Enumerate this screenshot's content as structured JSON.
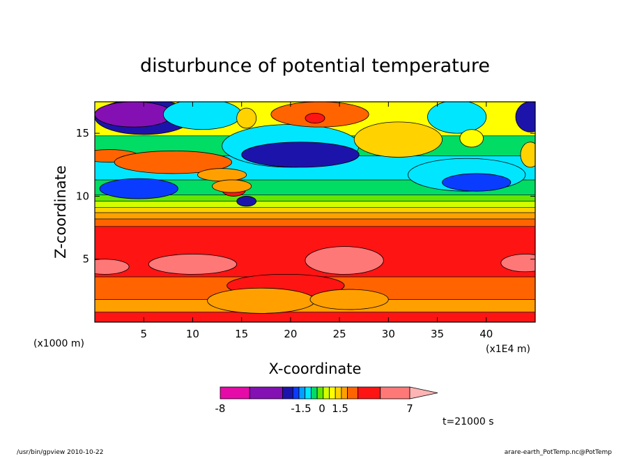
{
  "chart_data": {
    "type": "heatmap",
    "title": "disturbunce of potential temperature",
    "xlabel": "X-coordinate",
    "ylabel": "Z-coordinate",
    "x_unit_left": "(x1000 m)",
    "x_unit_right": "(x1E4 m)",
    "xlim": [
      0,
      45
    ],
    "ylim": [
      0,
      17.5
    ],
    "x_ticks": [
      "5",
      "10",
      "15",
      "20",
      "25",
      "30",
      "35",
      "40"
    ],
    "x_tick_values": [
      5,
      10,
      15,
      20,
      25,
      30,
      35,
      40
    ],
    "y_ticks": [
      "5",
      "10",
      "15"
    ],
    "y_tick_values": [
      5,
      10,
      15
    ],
    "colorbar": {
      "labels": [
        "-8",
        "-1.5",
        "0",
        "1.5",
        "7"
      ],
      "label_values": [
        -8,
        -1.5,
        0,
        1.5,
        7
      ],
      "colors": [
        "#e60aa8",
        "#8410b4",
        "#1c14aa",
        "#0a3cff",
        "#00a0ff",
        "#00e6ff",
        "#00dc64",
        "#64e600",
        "#d2ff00",
        "#ffff00",
        "#ffd200",
        "#ffa000",
        "#ff6400",
        "#ff1414",
        "#ff7878",
        "#ffb4b4"
      ]
    },
    "time_label": "t=21000 s",
    "bands": [
      {
        "z0": 0.0,
        "z1": 0.8,
        "color": "#ff1414"
      },
      {
        "z0": 0.8,
        "z1": 1.8,
        "color": "#ffa000"
      },
      {
        "z0": 1.8,
        "z1": 3.6,
        "color": "#ff6400"
      },
      {
        "z0": 3.6,
        "z1": 7.6,
        "color": "#ff1414"
      },
      {
        "z0": 7.6,
        "z1": 8.2,
        "color": "#ff6400"
      },
      {
        "z0": 8.2,
        "z1": 8.7,
        "color": "#ffa000"
      },
      {
        "z0": 8.7,
        "z1": 9.1,
        "color": "#ffd200"
      },
      {
        "z0": 9.1,
        "z1": 9.6,
        "color": "#d2ff00"
      },
      {
        "z0": 9.6,
        "z1": 10.1,
        "color": "#64e600"
      },
      {
        "z0": 10.1,
        "z1": 11.3,
        "color": "#00dc64"
      },
      {
        "z0": 11.3,
        "z1": 13.2,
        "color": "#00e6ff"
      },
      {
        "z0": 13.2,
        "z1": 14.8,
        "color": "#00dc64"
      },
      {
        "z0": 14.8,
        "z1": 17.5,
        "color": "#ffff00"
      }
    ],
    "blobs": [
      {
        "x": 5.0,
        "z": 16.3,
        "rx": 5.0,
        "rz": 1.4,
        "color": "#1c14aa"
      },
      {
        "x": 4.0,
        "z": 16.5,
        "rx": 4.0,
        "rz": 1.0,
        "color": "#8410b4"
      },
      {
        "x": 11.0,
        "z": 16.5,
        "rx": 4.0,
        "rz": 1.2,
        "color": "#00e6ff"
      },
      {
        "x": 1.5,
        "z": 13.2,
        "rx": 3.0,
        "rz": 0.5,
        "color": "#ff6400"
      },
      {
        "x": 8.0,
        "z": 12.7,
        "rx": 6.0,
        "rz": 0.9,
        "color": "#ff6400"
      },
      {
        "x": 13.0,
        "z": 11.7,
        "rx": 2.5,
        "rz": 0.5,
        "color": "#ffa000"
      },
      {
        "x": 4.5,
        "z": 10.6,
        "rx": 4.0,
        "rz": 0.8,
        "color": "#0a3cff"
      },
      {
        "x": 20.0,
        "z": 14.0,
        "rx": 7.0,
        "rz": 1.7,
        "color": "#00e6ff"
      },
      {
        "x": 21.0,
        "z": 13.3,
        "rx": 6.0,
        "rz": 1.0,
        "color": "#1c14aa"
      },
      {
        "x": 31.0,
        "z": 14.5,
        "rx": 4.5,
        "rz": 1.4,
        "color": "#ffd200"
      },
      {
        "x": 23.0,
        "z": 16.5,
        "rx": 5.0,
        "rz": 1.0,
        "color": "#ff6400"
      },
      {
        "x": 22.5,
        "z": 16.2,
        "rx": 1.0,
        "rz": 0.4,
        "color": "#ff1414"
      },
      {
        "x": 15.5,
        "z": 16.2,
        "rx": 1.0,
        "rz": 0.8,
        "color": "#ffd200"
      },
      {
        "x": 38.0,
        "z": 11.7,
        "rx": 6.0,
        "rz": 1.3,
        "color": "#00e6ff"
      },
      {
        "x": 39.0,
        "z": 11.1,
        "rx": 3.5,
        "rz": 0.7,
        "color": "#0a3cff"
      },
      {
        "x": 37.0,
        "z": 16.3,
        "rx": 3.0,
        "rz": 1.3,
        "color": "#00e6ff"
      },
      {
        "x": 44.5,
        "z": 16.3,
        "rx": 1.5,
        "rz": 1.2,
        "color": "#1c14aa"
      },
      {
        "x": 38.5,
        "z": 14.6,
        "rx": 1.2,
        "rz": 0.7,
        "color": "#ffff00"
      },
      {
        "x": 44.5,
        "z": 13.3,
        "rx": 1.0,
        "rz": 1.0,
        "color": "#ffd200"
      },
      {
        "x": 15.5,
        "z": 9.6,
        "rx": 1.0,
        "rz": 0.4,
        "color": "#1c14aa"
      },
      {
        "x": 14.2,
        "z": 10.5,
        "rx": 1.2,
        "rz": 0.5,
        "color": "#ff1414"
      },
      {
        "x": 14.0,
        "z": 10.8,
        "rx": 2.0,
        "rz": 0.5,
        "color": "#ffa000"
      },
      {
        "x": 1.0,
        "z": 4.4,
        "rx": 2.5,
        "rz": 0.6,
        "color": "#ff7878"
      },
      {
        "x": 10.0,
        "z": 4.6,
        "rx": 4.5,
        "rz": 0.8,
        "color": "#ff7878"
      },
      {
        "x": 25.5,
        "z": 4.9,
        "rx": 4.0,
        "rz": 1.1,
        "color": "#ff7878"
      },
      {
        "x": 44.0,
        "z": 4.7,
        "rx": 2.5,
        "rz": 0.7,
        "color": "#ff7878"
      },
      {
        "x": 19.5,
        "z": 2.9,
        "rx": 6.0,
        "rz": 0.9,
        "color": "#ff1414"
      },
      {
        "x": 17.0,
        "z": 1.7,
        "rx": 5.5,
        "rz": 1.0,
        "color": "#ffa000"
      },
      {
        "x": 26.0,
        "z": 1.8,
        "rx": 4.0,
        "rz": 0.8,
        "color": "#ffa000"
      }
    ]
  },
  "footer": {
    "left": "/usr/bin/gpview  2010-10-22",
    "right": "arare-earth_PotTemp.nc@PotTemp"
  }
}
